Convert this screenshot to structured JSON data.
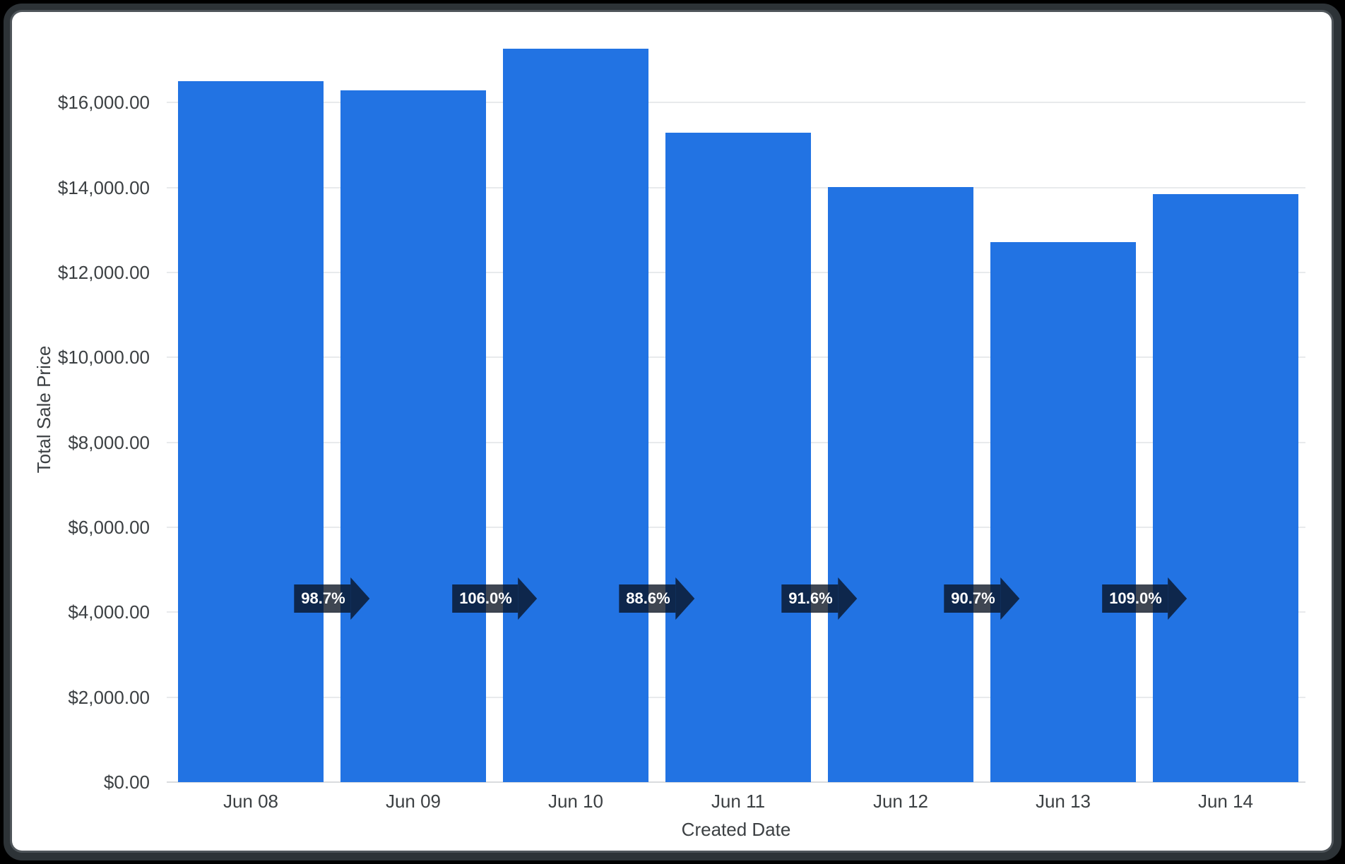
{
  "window": {
    "frame_color": "#2d3337",
    "frame_highlight": "#4f555a",
    "outer_background": "#000000",
    "card_background": "#ffffff"
  },
  "chart_data": {
    "type": "bar",
    "title": "",
    "xlabel": "Created Date",
    "ylabel": "Total Sale Price",
    "categories": [
      "Jun 08",
      "Jun 09",
      "Jun 10",
      "Jun 11",
      "Jun 12",
      "Jun 13",
      "Jun 14"
    ],
    "values": [
      16500,
      16286,
      17263,
      15295,
      14010,
      12707,
      13851
    ],
    "percent_change_labels": [
      "98.7%",
      "106.0%",
      "88.6%",
      "91.6%",
      "90.7%",
      "109.0%"
    ],
    "ytick_values": [
      0,
      2000,
      4000,
      6000,
      8000,
      10000,
      12000,
      14000,
      16000
    ],
    "ytick_labels": [
      "$0.00",
      "$2,000.00",
      "$4,000.00",
      "$6,000.00",
      "$8,000.00",
      "$10,000.00",
      "$12,000.00",
      "$14,000.00",
      "$16,000.00"
    ],
    "ylim": [
      0,
      17500
    ],
    "grid": "horizontal",
    "legend": "none",
    "colors": {
      "bar": "#2273e3",
      "grid": "#e8eaec",
      "axis_line": "#d9dbde",
      "axis_text": "#3c4043",
      "badge_fill": "rgba(9,18,33,0.78)",
      "badge_text": "#ffffff"
    }
  }
}
